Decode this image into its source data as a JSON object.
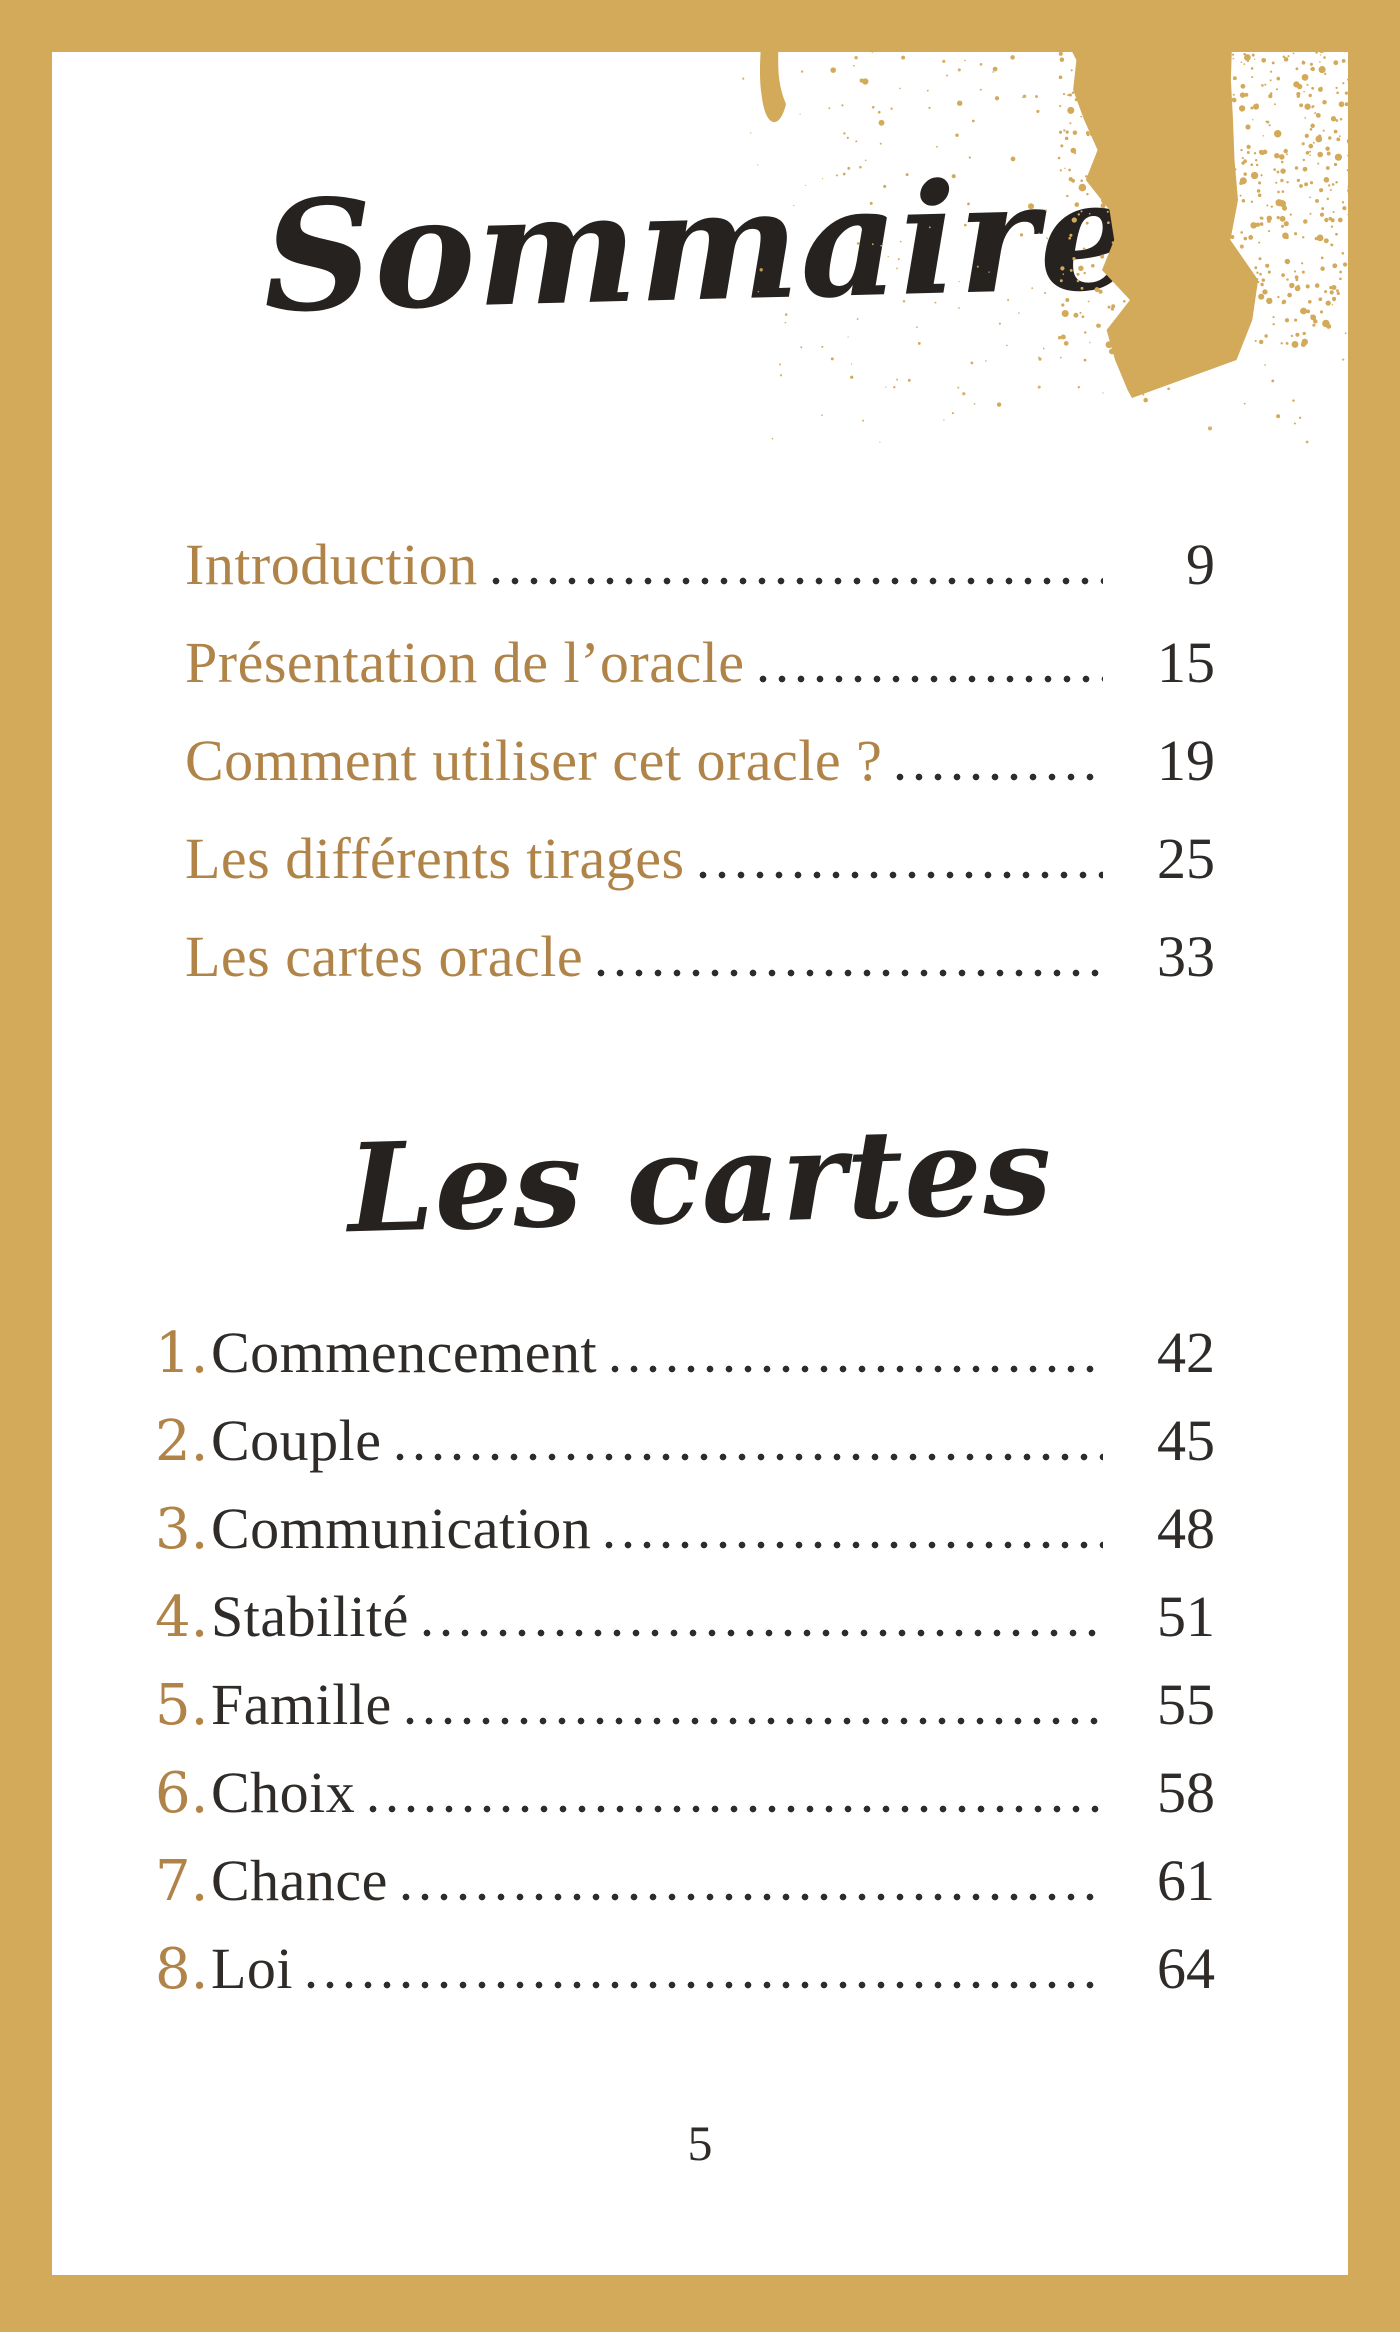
{
  "page": {
    "title": "Sommaire",
    "cards_title": "Les cartes",
    "page_number": "5"
  },
  "colors": {
    "frame_gold": "#D3A95A",
    "entry_gold": "#B08449",
    "ink": "#2F2B28",
    "paper": "#FFFFFF"
  },
  "main_toc": [
    {
      "label": "Introduction",
      "page": "9"
    },
    {
      "label": "Présentation de l’oracle",
      "page": "15"
    },
    {
      "label": "Comment utiliser cet oracle ?",
      "page": "19"
    },
    {
      "label": "Les différents tirages",
      "page": "25"
    },
    {
      "label": "Les cartes oracle",
      "page": "33"
    }
  ],
  "cards_toc": [
    {
      "num": "1.",
      "label": "Commencement",
      "page": "42"
    },
    {
      "num": "2.",
      "label": "Couple",
      "page": "45"
    },
    {
      "num": "3.",
      "label": "Communication",
      "page": "48"
    },
    {
      "num": "4.",
      "label": "Stabilité",
      "page": "51"
    },
    {
      "num": "5.",
      "label": "Famille",
      "page": "55"
    },
    {
      "num": "6.",
      "label": "Choix",
      "page": "58"
    },
    {
      "num": "7.",
      "label": "Chance",
      "page": "61"
    },
    {
      "num": "8.",
      "label": "Loi",
      "page": "64"
    }
  ],
  "decoration": {
    "gold_splatter": "gold paint spray, top-right corner"
  }
}
